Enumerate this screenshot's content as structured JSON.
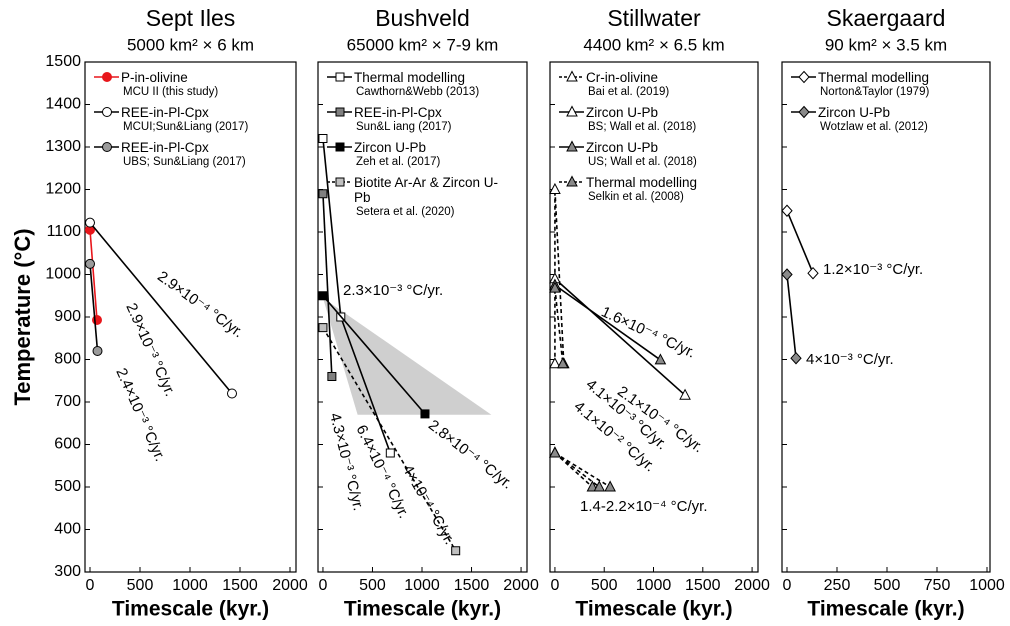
{
  "chart_data": [
    {
      "type": "line",
      "title": "Sept Iles",
      "subtitle": "5000 km² × 6 km",
      "xlabel": "Timescale (kyr.)",
      "ylabel": "Temperature (°C)",
      "xlim": [
        -50,
        2060
      ],
      "xticks": [
        0,
        500,
        1000,
        1500,
        2000
      ],
      "ylim": [
        300,
        1500
      ],
      "yticks": [
        300,
        400,
        500,
        600,
        700,
        800,
        900,
        1000,
        1100,
        1200,
        1300,
        1400,
        1500
      ],
      "series": [
        {
          "name": "P-in-olivine",
          "source": "MCU II (this study)",
          "color": "#e8161b",
          "marker": "circle",
          "marker_color": "#e8161b",
          "dashed": false,
          "x": [
            0,
            70
          ],
          "y": [
            1105,
            893
          ]
        },
        {
          "name": "REE-in-Pl-Cpx",
          "source": "MCUI;Sun&Liang (2017)",
          "color": "#000000",
          "marker": "circle",
          "marker_color": "#ffffff",
          "dashed": false,
          "x": [
            0,
            1420
          ],
          "y": [
            1122,
            720
          ]
        },
        {
          "name": "REE-in-Pl-Cpx",
          "source": "UBS; Sun&Liang (2017)",
          "color": "#000000",
          "marker": "circle",
          "marker_color": "#9a9a9a",
          "dashed": false,
          "x": [
            0,
            75
          ],
          "y": [
            1025,
            820
          ]
        }
      ],
      "annotations": [
        "2.9×10⁻⁴ °C/yr.",
        "2.9×10⁻³ °C/yr.",
        "2.4×10⁻³ °C/yr."
      ]
    },
    {
      "type": "line",
      "title": "Bushveld",
      "subtitle": "65000 km² × 7-9 km",
      "xlabel": "Timescale (kyr.)",
      "xlim": [
        -50,
        2060
      ],
      "xticks": [
        0,
        500,
        1000,
        1500,
        2000
      ],
      "ylim": [
        300,
        1500
      ],
      "shaded_region": {
        "color": "#cfcfcf",
        "x": [
          0,
          1700,
          350
        ],
        "y": [
          945,
          670,
          670
        ]
      },
      "series": [
        {
          "name": "Thermal modelling",
          "source": "Cawthorn&Webb (2013)",
          "color": "#000000",
          "marker": "square",
          "marker_color": "#ffffff",
          "dashed": false,
          "x": [
            0,
            180,
            680
          ],
          "y": [
            1320,
            900,
            580
          ]
        },
        {
          "name": "REE-in-Pl-Cpx",
          "source": "Sun&L iang (2017)",
          "color": "#000000",
          "marker": "square",
          "marker_color": "#808080",
          "dashed": false,
          "x": [
            0,
            90
          ],
          "y": [
            1190,
            760
          ]
        },
        {
          "name": "Zircon U-Pb",
          "source": "Zeh et al. (2017)",
          "color": "#000000",
          "marker": "square",
          "marker_color": "#000000",
          "dashed": false,
          "x": [
            0,
            1030
          ],
          "y": [
            950,
            672
          ]
        },
        {
          "name": "Biotite Ar-Ar & Zircon U-Pb",
          "source": "Setera et al. (2020)",
          "color": "#000000",
          "marker": "square",
          "marker_color": "#c0c0c0",
          "dashed": true,
          "x": [
            0,
            1340
          ],
          "y": [
            875,
            350
          ]
        }
      ],
      "annotations": [
        "2.3×10⁻³ °C/yr.",
        "4.3×10⁻³ °C/yr.",
        "6.4×10⁻⁴ °C/yr.",
        "4×10⁻⁴ °C/yr.",
        "2.8×10⁻⁴ °C/yr."
      ]
    },
    {
      "type": "line",
      "title": "Stillwater",
      "subtitle": "4400 km² × 6.5 km",
      "xlabel": "Timescale (kyr.)",
      "xlim": [
        -50,
        2060
      ],
      "xticks": [
        0,
        500,
        1000,
        1500,
        2000
      ],
      "ylim": [
        300,
        1500
      ],
      "series": [
        {
          "name": "Cr-in-olivine",
          "source": "Bai et al. (2019)",
          "color": "#000000",
          "marker": "triangle",
          "marker_color": "#ffffff",
          "dashed": true,
          "x": [
            0,
            0,
            90
          ],
          "y": [
            790,
            1200,
            790
          ]
        },
        {
          "name": "Zircon U-Pb",
          "source": "BS; Wall et al. (2018)",
          "color": "#000000",
          "marker": "triangle",
          "marker_color": "#ffffff",
          "dashed": false,
          "x": [
            0,
            1320
          ],
          "y": [
            990,
            716
          ]
        },
        {
          "name": "Zircon U-Pb",
          "source": "US; Wall et al. (2018)",
          "color": "#000000",
          "marker": "triangle",
          "marker_color": "#8a8a8a",
          "dashed": false,
          "x": [
            0,
            1070
          ],
          "y": [
            975,
            799
          ]
        },
        {
          "name": "Thermal modelling",
          "source": "Selkin et al. (2008)",
          "color": "#000000",
          "marker": "triangle",
          "marker_color": "#8a8a8a",
          "dashed": true,
          "x": [
            0,
            80,
            null,
            0,
            380,
            null,
            0,
            450,
            null,
            0,
            560
          ],
          "y": [
            968,
            790,
            null,
            580,
            500,
            null,
            580,
            500,
            null,
            580,
            500
          ]
        }
      ],
      "annotations": [
        "1.6×10⁻⁴ °C/yr.",
        "2.1×10⁻⁴ °C/yr.",
        "4.1×10⁻³ °C/yr.",
        "4.1×10⁻² °C/yr.",
        "1.4-2.2×10⁻⁴ °C/yr."
      ]
    },
    {
      "type": "line",
      "title": "Skaergaard",
      "subtitle": "90 km² × 3.5 km",
      "xlabel": "Timescale (kyr.)",
      "xlim": [
        -25,
        1015
      ],
      "xticks": [
        0,
        250,
        500,
        750,
        1000
      ],
      "ylim": [
        300,
        1500
      ],
      "series": [
        {
          "name": "Thermal modelling",
          "source": "Norton&Taylor (1979)",
          "color": "#000000",
          "marker": "diamond",
          "marker_color": "#ffffff",
          "dashed": false,
          "x": [
            0,
            130
          ],
          "y": [
            1150,
            1003
          ]
        },
        {
          "name": "Zircon U-Pb",
          "source": "Wotzlaw et al. (2012)",
          "color": "#000000",
          "marker": "diamond",
          "marker_color": "#8a8a8a",
          "dashed": false,
          "x": [
            0,
            45
          ],
          "y": [
            1000,
            803
          ]
        }
      ],
      "annotations": [
        "1.2×10⁻³ °C/yr.",
        "4×10⁻³ °C/yr."
      ]
    }
  ]
}
